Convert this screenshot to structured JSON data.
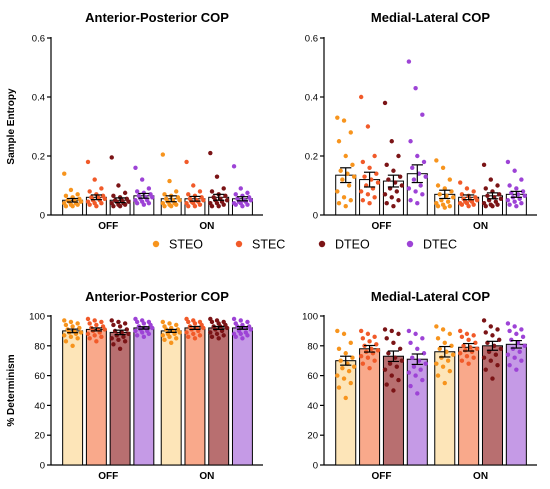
{
  "colors": {
    "STEO": "#f7941d",
    "STEC": "#f15a29",
    "DTEO": "#7b1416",
    "DTEC": "#9d43d6",
    "STEO_bar": "#fde5b8",
    "STEC_bar": "#f9a98b",
    "DTEO_bar": "#b86f70",
    "DTEC_bar": "#c59ae6"
  },
  "legend": [
    "STEO",
    "STEC",
    "DTEO",
    "DTEC"
  ],
  "chart_data": [
    {
      "type": "bar",
      "title": "Anterior-Posterior COP",
      "ylabel": "Sample Entropy",
      "ylim": [
        0,
        0.6
      ],
      "yticks": [
        0,
        0.2,
        0.4,
        0.6
      ],
      "ytick_labels": [
        "0",
        "0.2",
        "0.4",
        "0.6"
      ],
      "categories": [
        "OFF",
        "ON"
      ],
      "bars_filled": false,
      "series": [
        {
          "name": "STEO",
          "values": [
            0.05,
            0.055
          ],
          "err": [
            0.006,
            0.01
          ],
          "points": [
            [
              0.14,
              0.085,
              0.07,
              0.065,
              0.06,
              0.055,
              0.05,
              0.05,
              0.045,
              0.045,
              0.04,
              0.04,
              0.035,
              0.035,
              0.03,
              0.03
            ],
            [
              0.205,
              0.115,
              0.08,
              0.07,
              0.065,
              0.06,
              0.055,
              0.05,
              0.05,
              0.045,
              0.04,
              0.04,
              0.035,
              0.035,
              0.03,
              0.03
            ]
          ]
        },
        {
          "name": "STEC",
          "values": [
            0.06,
            0.055
          ],
          "err": [
            0.008,
            0.008
          ],
          "points": [
            [
              0.18,
              0.12,
              0.09,
              0.08,
              0.07,
              0.065,
              0.06,
              0.06,
              0.055,
              0.05,
              0.05,
              0.045,
              0.04,
              0.04,
              0.035,
              0.03
            ],
            [
              0.18,
              0.1,
              0.08,
              0.07,
              0.065,
              0.06,
              0.055,
              0.05,
              0.05,
              0.045,
              0.045,
              0.04,
              0.04,
              0.035,
              0.03,
              0.03
            ]
          ]
        },
        {
          "name": "DTEO",
          "values": [
            0.05,
            0.06
          ],
          "err": [
            0.008,
            0.01
          ],
          "points": [
            [
              0.195,
              0.1,
              0.075,
              0.065,
              0.06,
              0.055,
              0.05,
              0.05,
              0.045,
              0.045,
              0.04,
              0.04,
              0.035,
              0.035,
              0.03,
              0.03
            ],
            [
              0.21,
              0.13,
              0.09,
              0.08,
              0.07,
              0.065,
              0.06,
              0.055,
              0.05,
              0.05,
              0.045,
              0.04,
              0.04,
              0.035,
              0.03,
              0.03
            ]
          ]
        },
        {
          "name": "DTEC",
          "values": [
            0.065,
            0.055
          ],
          "err": [
            0.008,
            0.007
          ],
          "points": [
            [
              0.16,
              0.12,
              0.09,
              0.08,
              0.075,
              0.07,
              0.065,
              0.06,
              0.06,
              0.055,
              0.05,
              0.05,
              0.045,
              0.04,
              0.04,
              0.035
            ],
            [
              0.165,
              0.09,
              0.075,
              0.07,
              0.065,
              0.06,
              0.055,
              0.05,
              0.05,
              0.045,
              0.045,
              0.04,
              0.04,
              0.035,
              0.035,
              0.03
            ]
          ]
        }
      ]
    },
    {
      "type": "bar",
      "title": "Medial-Lateral COP",
      "ylabel": "",
      "ylim": [
        0,
        0.6
      ],
      "yticks": [
        0,
        0.2,
        0.4,
        0.6
      ],
      "ytick_labels": [
        "0",
        "0.2",
        "0.4",
        "0.6"
      ],
      "categories": [
        "OFF",
        "ON"
      ],
      "bars_filled": false,
      "series": [
        {
          "name": "STEO",
          "values": [
            0.135,
            0.07
          ],
          "err": [
            0.025,
            0.014
          ],
          "points": [
            [
              0.33,
              0.32,
              0.28,
              0.25,
              0.2,
              0.17,
              0.15,
              0.14,
              0.13,
              0.12,
              0.1,
              0.08,
              0.06,
              0.05,
              0.04,
              0.03
            ],
            [
              0.185,
              0.16,
              0.12,
              0.1,
              0.09,
              0.08,
              0.07,
              0.065,
              0.06,
              0.05,
              0.045,
              0.04,
              0.035,
              0.03,
              0.03,
              0.025
            ]
          ]
        },
        {
          "name": "STEC",
          "values": [
            0.12,
            0.06
          ],
          "err": [
            0.025,
            0.008
          ],
          "points": [
            [
              0.4,
              0.3,
              0.2,
              0.18,
              0.16,
              0.14,
              0.13,
              0.12,
              0.11,
              0.1,
              0.09,
              0.08,
              0.07,
              0.06,
              0.05,
              0.04
            ],
            [
              0.11,
              0.09,
              0.08,
              0.07,
              0.065,
              0.06,
              0.055,
              0.05,
              0.05,
              0.045,
              0.045,
              0.04,
              0.04,
              0.035,
              0.035,
              0.03
            ]
          ]
        },
        {
          "name": "DTEO",
          "values": [
            0.115,
            0.065
          ],
          "err": [
            0.02,
            0.01
          ],
          "points": [
            [
              0.38,
              0.25,
              0.2,
              0.17,
              0.15,
              0.13,
              0.12,
              0.11,
              0.1,
              0.09,
              0.08,
              0.07,
              0.06,
              0.05,
              0.04,
              0.03
            ],
            [
              0.17,
              0.12,
              0.1,
              0.09,
              0.08,
              0.07,
              0.065,
              0.06,
              0.055,
              0.05,
              0.045,
              0.04,
              0.035,
              0.035,
              0.03,
              0.03
            ]
          ]
        },
        {
          "name": "DTEC",
          "values": [
            0.14,
            0.07
          ],
          "err": [
            0.03,
            0.01
          ],
          "points": [
            [
              0.52,
              0.43,
              0.34,
              0.25,
              0.2,
              0.18,
              0.16,
              0.14,
              0.13,
              0.12,
              0.1,
              0.09,
              0.08,
              0.07,
              0.05,
              0.04
            ],
            [
              0.18,
              0.15,
              0.12,
              0.1,
              0.09,
              0.08,
              0.075,
              0.07,
              0.065,
              0.06,
              0.055,
              0.05,
              0.045,
              0.04,
              0.035,
              0.03
            ]
          ]
        }
      ]
    },
    {
      "type": "bar",
      "title": "Anterior-Posterior COP",
      "ylabel": "% Determinism",
      "ylim": [
        0,
        100
      ],
      "yticks": [
        0,
        20,
        40,
        60,
        80,
        100
      ],
      "ytick_labels": [
        "0",
        "20",
        "40",
        "60",
        "80",
        "100"
      ],
      "categories": [
        "OFF",
        "ON"
      ],
      "bars_filled": true,
      "series": [
        {
          "name": "STEO",
          "values": [
            90,
            90
          ],
          "err": [
            1.2,
            1.0
          ],
          "points": [
            [
              97,
              96,
              95,
              94,
              93,
              92,
              91,
              90,
              89,
              89,
              88,
              87,
              86,
              85,
              83,
              80
            ],
            [
              96,
              95,
              94,
              93,
              92,
              91,
              91,
              90,
              89,
              88,
              88,
              87,
              86,
              85,
              84,
              82
            ]
          ]
        },
        {
          "name": "STEC",
          "values": [
            91,
            92
          ],
          "err": [
            1.0,
            1.0
          ],
          "points": [
            [
              98,
              97,
              96,
              95,
              94,
              93,
              92,
              91,
              91,
              90,
              89,
              88,
              87,
              86,
              85,
              83
            ],
            [
              98,
              97,
              96,
              96,
              95,
              94,
              93,
              92,
              92,
              91,
              90,
              89,
              88,
              87,
              86,
              85
            ]
          ]
        },
        {
          "name": "DTEO",
          "values": [
            89,
            92
          ],
          "err": [
            1.5,
            1.0
          ],
          "points": [
            [
              97,
              96,
              95,
              94,
              93,
              91,
              90,
              89,
              88,
              87,
              86,
              85,
              84,
              83,
              81,
              78
            ],
            [
              98,
              97,
              96,
              96,
              95,
              94,
              93,
              93,
              92,
              91,
              90,
              89,
              88,
              87,
              86,
              85
            ]
          ]
        },
        {
          "name": "DTEC",
          "values": [
            92,
            92
          ],
          "err": [
            0.8,
            0.9
          ],
          "points": [
            [
              98,
              97,
              96,
              96,
              95,
              94,
              93,
              92,
              92,
              91,
              90,
              90,
              89,
              88,
              87,
              86
            ],
            [
              98,
              97,
              96,
              95,
              94,
              93,
              93,
              92,
              91,
              90,
              89,
              88,
              88,
              87,
              86,
              85
            ]
          ]
        }
      ]
    },
    {
      "type": "bar",
      "title": "Medial-Lateral COP",
      "ylabel": "",
      "ylim": [
        0,
        100
      ],
      "yticks": [
        0,
        20,
        40,
        60,
        80,
        100
      ],
      "ytick_labels": [
        "0",
        "20",
        "40",
        "60",
        "80",
        "100"
      ],
      "categories": [
        "OFF",
        "ON"
      ],
      "bars_filled": true,
      "series": [
        {
          "name": "STEO",
          "values": [
            70,
            76
          ],
          "err": [
            3.0,
            3.5
          ],
          "points": [
            [
              90,
              88,
              82,
              78,
              75,
              72,
              70,
              68,
              66,
              65,
              63,
              60,
              58,
              55,
              52,
              45
            ],
            [
              93,
              91,
              88,
              85,
              82,
              80,
              78,
              76,
              74,
              72,
              70,
              68,
              66,
              63,
              60,
              55
            ]
          ]
        },
        {
          "name": "STEC",
          "values": [
            78,
            79
          ],
          "err": [
            2.2,
            2.5
          ],
          "points": [
            [
              90,
              88,
              86,
              85,
              83,
              81,
              80,
              78,
              77,
              76,
              75,
              73,
              72,
              70,
              68,
              65
            ],
            [
              90,
              88,
              87,
              86,
              84,
              82,
              80,
              79,
              78,
              77,
              76,
              75,
              73,
              72,
              70,
              68
            ]
          ]
        },
        {
          "name": "DTEO",
          "values": [
            73,
            80
          ],
          "err": [
            3.5,
            3.0
          ],
          "points": [
            [
              91,
              90,
              88,
              85,
              82,
              78,
              75,
              72,
              70,
              68,
              66,
              64,
              60,
              57,
              54,
              50
            ],
            [
              97,
              93,
              91,
              89,
              87,
              84,
              82,
              80,
              78,
              76,
              74,
              72,
              70,
              67,
              64,
              58
            ]
          ]
        },
        {
          "name": "DTEC",
          "values": [
            71,
            81
          ],
          "err": [
            3.5,
            2.5
          ],
          "points": [
            [
              90,
              88,
              85,
              82,
              78,
              75,
              72,
              70,
              68,
              66,
              64,
              62,
              60,
              57,
              53,
              48
            ],
            [
              95,
              93,
              91,
              90,
              88,
              86,
              84,
              82,
              80,
              78,
              76,
              74,
              72,
              70,
              67,
              64
            ]
          ]
        }
      ]
    }
  ]
}
